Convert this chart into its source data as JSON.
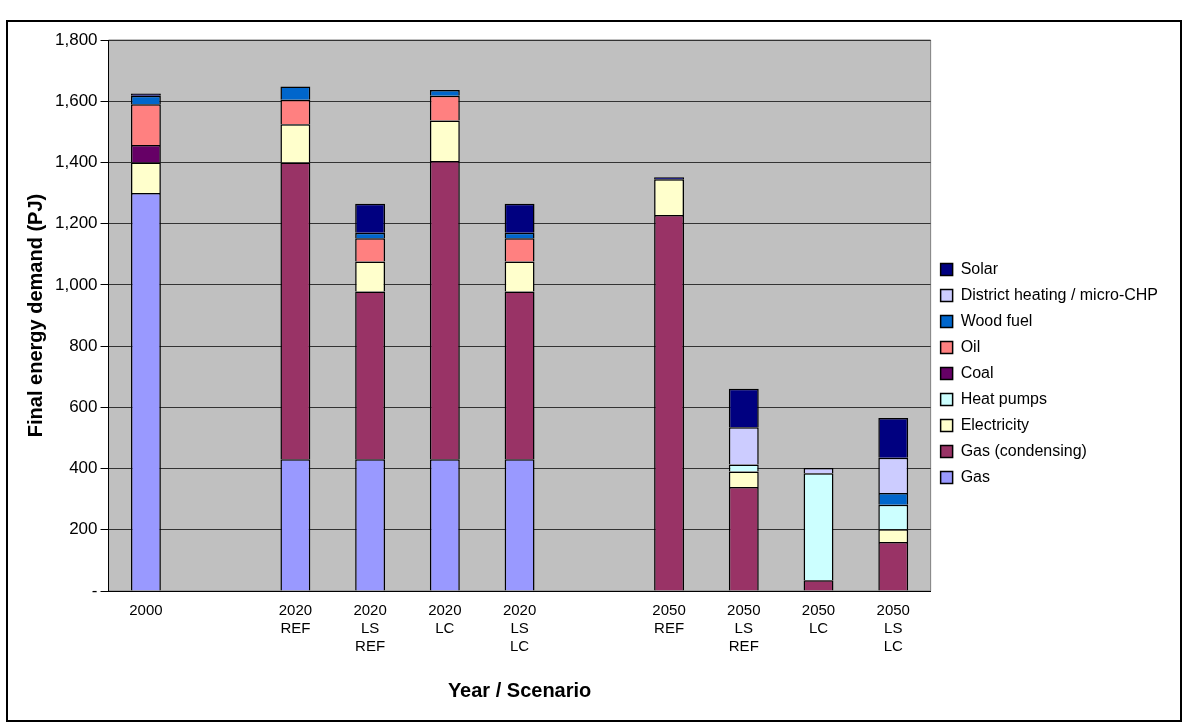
{
  "chart_data": {
    "type": "bar",
    "stacked": true,
    "xlabel": "Year / Scenario",
    "ylabel": "Final energy demand (PJ)",
    "categories": [
      "2000",
      null,
      "2020\nREF",
      "2020\nLS\nREF",
      "2020\nLC",
      "2020\nLS\nLC",
      null,
      "2050\nREF",
      "2050\nLS\nREF",
      "2050\nLC",
      "2050\nLS\nLC"
    ],
    "series": [
      {
        "name": "Gas",
        "color": "#9999ff",
        "values": [
          1300,
          null,
          430,
          430,
          430,
          430,
          null,
          null,
          null,
          null,
          null
        ]
      },
      {
        "name": "Gas (condensing)",
        "color": "#993366",
        "values": [
          null,
          null,
          970,
          548,
          975,
          548,
          null,
          1228,
          340,
          35,
          160
        ]
      },
      {
        "name": "Electricity",
        "color": "#ffffcc",
        "values": [
          100,
          null,
          125,
          98,
          132,
          98,
          null,
          117,
          50,
          null,
          42
        ]
      },
      {
        "name": "Heat pumps",
        "color": "#ccffff",
        "values": [
          null,
          null,
          null,
          null,
          null,
          null,
          null,
          null,
          23,
          350,
          80
        ]
      },
      {
        "name": "Coal",
        "color": "#660066",
        "values": [
          57,
          null,
          null,
          null,
          null,
          null,
          null,
          null,
          null,
          null,
          null
        ]
      },
      {
        "name": "Oil",
        "color": "#ff8080",
        "values": [
          133,
          null,
          80,
          76,
          81,
          76,
          null,
          null,
          null,
          null,
          null
        ]
      },
      {
        "name": "Wood fuel",
        "color": "#0066cc",
        "values": [
          28,
          null,
          43,
          18,
          19,
          18,
          null,
          null,
          null,
          null,
          38
        ]
      },
      {
        "name": "District heating / micro-CHP",
        "color": "#ccccff",
        "values": [
          null,
          null,
          null,
          null,
          null,
          null,
          null,
          null,
          122,
          17,
          115
        ]
      },
      {
        "name": "Solar",
        "color": "#000080",
        "values": [
          7,
          null,
          null,
          95,
          null,
          95,
          null,
          7,
          126,
          null,
          130
        ]
      }
    ],
    "ylim": [
      0,
      1800
    ],
    "yticks": [
      {
        "value": 0,
        "label": "-"
      },
      200,
      400,
      600,
      800,
      {
        "value": 1000,
        "label": "1,000"
      },
      {
        "value": 1200,
        "label": "1,200"
      },
      {
        "value": 1400,
        "label": "1,400"
      },
      {
        "value": 1600,
        "label": "1,600"
      },
      {
        "value": 1800,
        "label": "1,800"
      }
    ],
    "grid": "y",
    "legend": "right"
  }
}
